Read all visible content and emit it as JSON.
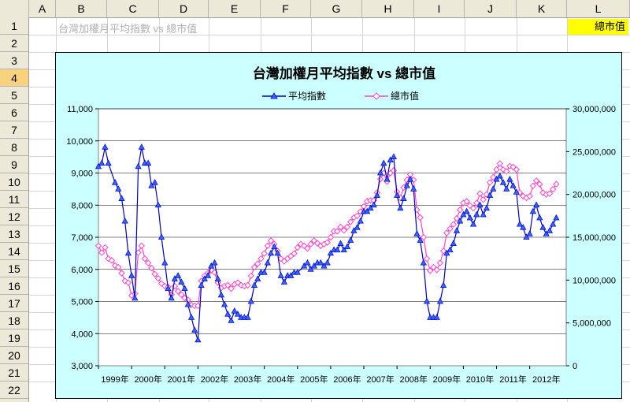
{
  "sheet": {
    "columns": [
      "A",
      "B",
      "C",
      "D",
      "E",
      "F",
      "G",
      "H",
      "I",
      "J",
      "K",
      "L"
    ],
    "rows": [
      "1",
      "2",
      "3",
      "4",
      "5",
      "6",
      "7",
      "8",
      "9",
      "10",
      "11",
      "12",
      "13",
      "14",
      "15",
      "16",
      "17",
      "18",
      "19",
      "20",
      "21",
      "22"
    ],
    "selected_row": "4",
    "cell_b1": "台灣加權月平均指數 vs 總市值",
    "cell_l1": "總市值"
  },
  "colors": {
    "index_series": "#0000cc",
    "index_marker": "#3366ff",
    "cap_series": "#ff44cc",
    "chart_bg": "#ccffff",
    "header_bg": "#ece9d8",
    "highlight": "#ffff00"
  },
  "chart_data": {
    "type": "line",
    "title": "台灣加權月平均指數 vs 總市值",
    "legend_position": "top",
    "grid": "horizontal",
    "x_tick_labels": [
      "1999年",
      "2000年",
      "2001年",
      "2002年",
      "2003年",
      "2004年",
      "2005年",
      "2006年",
      "2007年",
      "2008年",
      "2009年",
      "2010年",
      "2011年",
      "2012年"
    ],
    "x_range": [
      1999,
      2013.1
    ],
    "y_left": {
      "range": [
        3000,
        11000
      ],
      "ticks": [
        3000,
        4000,
        5000,
        6000,
        7000,
        8000,
        9000,
        10000,
        11000
      ],
      "tick_labels": [
        "3,000",
        "4,000",
        "5,000",
        "6,000",
        "7,000",
        "8,000",
        "9,000",
        "10,000",
        "11,000"
      ]
    },
    "y_right": {
      "range": [
        0,
        30000000
      ],
      "ticks": [
        0,
        5000000,
        10000000,
        15000000,
        20000000,
        25000000,
        30000000
      ],
      "tick_labels": [
        "0",
        "5,000,000",
        "10,000,000",
        "15,000,000",
        "20,000,000",
        "25,000,000",
        "30,000,000"
      ]
    },
    "series": [
      {
        "name": "平均指數",
        "axis": "left",
        "marker": "triangle",
        "points": [
          [
            1999.0,
            9200
          ],
          [
            1999.1,
            9300
          ],
          [
            1999.2,
            9800
          ],
          [
            1999.3,
            9300
          ],
          [
            1999.5,
            8700
          ],
          [
            1999.6,
            8500
          ],
          [
            1999.7,
            8200
          ],
          [
            1999.8,
            7500
          ],
          [
            1999.9,
            6500
          ],
          [
            2000.0,
            5800
          ],
          [
            2000.1,
            5100
          ],
          [
            2000.2,
            9200
          ],
          [
            2000.3,
            9800
          ],
          [
            2000.4,
            9300
          ],
          [
            2000.5,
            9300
          ],
          [
            2000.6,
            8600
          ],
          [
            2000.7,
            8700
          ],
          [
            2000.8,
            8000
          ],
          [
            2000.9,
            7000
          ],
          [
            2001.0,
            6200
          ],
          [
            2001.1,
            5400
          ],
          [
            2001.2,
            5100
          ],
          [
            2001.3,
            5700
          ],
          [
            2001.4,
            5800
          ],
          [
            2001.5,
            5600
          ],
          [
            2001.6,
            5400
          ],
          [
            2001.7,
            4900
          ],
          [
            2001.8,
            4500
          ],
          [
            2001.9,
            4100
          ],
          [
            2002.0,
            3800
          ],
          [
            2002.1,
            5500
          ],
          [
            2002.2,
            5700
          ],
          [
            2002.3,
            5800
          ],
          [
            2002.4,
            6100
          ],
          [
            2002.5,
            6200
          ],
          [
            2002.6,
            5700
          ],
          [
            2002.7,
            5200
          ],
          [
            2002.8,
            4900
          ],
          [
            2002.9,
            4600
          ],
          [
            2003.0,
            4400
          ],
          [
            2003.1,
            4700
          ],
          [
            2003.2,
            4600
          ],
          [
            2003.3,
            4500
          ],
          [
            2003.4,
            4500
          ],
          [
            2003.5,
            4500
          ],
          [
            2003.6,
            5000
          ],
          [
            2003.7,
            5500
          ],
          [
            2003.8,
            5700
          ],
          [
            2003.9,
            5900
          ],
          [
            2004.0,
            5900
          ],
          [
            2004.1,
            6200
          ],
          [
            2004.2,
            6500
          ],
          [
            2004.3,
            6700
          ],
          [
            2004.4,
            6500
          ],
          [
            2004.5,
            5800
          ],
          [
            2004.6,
            5600
          ],
          [
            2004.7,
            5800
          ],
          [
            2004.8,
            5800
          ],
          [
            2004.9,
            5900
          ],
          [
            2005.0,
            5900
          ],
          [
            2005.2,
            6100
          ],
          [
            2005.3,
            6200
          ],
          [
            2005.4,
            6000
          ],
          [
            2005.5,
            6100
          ],
          [
            2005.6,
            6200
          ],
          [
            2005.7,
            6200
          ],
          [
            2005.8,
            6100
          ],
          [
            2005.9,
            6200
          ],
          [
            2006.0,
            6500
          ],
          [
            2006.1,
            6600
          ],
          [
            2006.2,
            6600
          ],
          [
            2006.3,
            6800
          ],
          [
            2006.4,
            6600
          ],
          [
            2006.5,
            6700
          ],
          [
            2006.6,
            6900
          ],
          [
            2006.7,
            7200
          ],
          [
            2006.8,
            7300
          ],
          [
            2006.9,
            7500
          ],
          [
            2007.0,
            7800
          ],
          [
            2007.1,
            7800
          ],
          [
            2007.2,
            7900
          ],
          [
            2007.3,
            8000
          ],
          [
            2007.4,
            8300
          ],
          [
            2007.5,
            9000
          ],
          [
            2007.6,
            9300
          ],
          [
            2007.7,
            8800
          ],
          [
            2007.8,
            9400
          ],
          [
            2007.9,
            9500
          ],
          [
            2008.0,
            8300
          ],
          [
            2008.1,
            7900
          ],
          [
            2008.2,
            8200
          ],
          [
            2008.3,
            8600
          ],
          [
            2008.4,
            8800
          ],
          [
            2008.5,
            8500
          ],
          [
            2008.6,
            7100
          ],
          [
            2008.7,
            6900
          ],
          [
            2008.8,
            6200
          ],
          [
            2008.9,
            5000
          ],
          [
            2009.0,
            4500
          ],
          [
            2009.1,
            4500
          ],
          [
            2009.2,
            4500
          ],
          [
            2009.3,
            5000
          ],
          [
            2009.4,
            5500
          ],
          [
            2009.5,
            6500
          ],
          [
            2009.6,
            6600
          ],
          [
            2009.7,
            6800
          ],
          [
            2009.8,
            7200
          ],
          [
            2009.9,
            7500
          ],
          [
            2010.0,
            7700
          ],
          [
            2010.1,
            7800
          ],
          [
            2010.2,
            7600
          ],
          [
            2010.3,
            7400
          ],
          [
            2010.4,
            7700
          ],
          [
            2010.5,
            8000
          ],
          [
            2010.6,
            7700
          ],
          [
            2010.7,
            7900
          ],
          [
            2010.8,
            8300
          ],
          [
            2010.9,
            8500
          ],
          [
            2011.0,
            8800
          ],
          [
            2011.1,
            8900
          ],
          [
            2011.2,
            8700
          ],
          [
            2011.3,
            8500
          ],
          [
            2011.4,
            8800
          ],
          [
            2011.5,
            8600
          ],
          [
            2011.6,
            8400
          ],
          [
            2011.7,
            7400
          ],
          [
            2011.8,
            7300
          ],
          [
            2011.9,
            7000
          ],
          [
            2012.0,
            7100
          ],
          [
            2012.1,
            7800
          ],
          [
            2012.2,
            8000
          ],
          [
            2012.3,
            7600
          ],
          [
            2012.4,
            7300
          ],
          [
            2012.5,
            7100
          ],
          [
            2012.6,
            7200
          ],
          [
            2012.7,
            7400
          ],
          [
            2012.8,
            7600
          ]
        ]
      },
      {
        "name": "總市值",
        "axis": "right",
        "marker": "diamond",
        "points": [
          [
            1999.0,
            14000000
          ],
          [
            1999.1,
            13200000
          ],
          [
            1999.2,
            13800000
          ],
          [
            1999.3,
            12500000
          ],
          [
            1999.4,
            12300000
          ],
          [
            1999.5,
            11700000
          ],
          [
            1999.6,
            11500000
          ],
          [
            1999.7,
            10800000
          ],
          [
            1999.8,
            9900000
          ],
          [
            1999.9,
            9700000
          ],
          [
            2000.0,
            8200000
          ],
          [
            2000.1,
            8400000
          ],
          [
            2000.2,
            13200000
          ],
          [
            2000.3,
            14000000
          ],
          [
            2000.4,
            12500000
          ],
          [
            2000.5,
            12000000
          ],
          [
            2000.6,
            11400000
          ],
          [
            2000.7,
            10700000
          ],
          [
            2000.8,
            10200000
          ],
          [
            2000.9,
            9600000
          ],
          [
            2001.0,
            9300000
          ],
          [
            2001.1,
            9200000
          ],
          [
            2001.2,
            8300000
          ],
          [
            2001.3,
            9300000
          ],
          [
            2001.4,
            8700000
          ],
          [
            2001.5,
            8300000
          ],
          [
            2001.6,
            7900000
          ],
          [
            2001.7,
            7700000
          ],
          [
            2001.8,
            7100000
          ],
          [
            2001.9,
            7000000
          ],
          [
            2002.0,
            7000000
          ],
          [
            2002.1,
            9900000
          ],
          [
            2002.2,
            10500000
          ],
          [
            2002.3,
            10800000
          ],
          [
            2002.4,
            11200000
          ],
          [
            2002.5,
            10900000
          ],
          [
            2002.6,
            9700000
          ],
          [
            2002.7,
            9100000
          ],
          [
            2002.8,
            9300000
          ],
          [
            2002.9,
            9400000
          ],
          [
            2003.0,
            9000000
          ],
          [
            2003.1,
            9500000
          ],
          [
            2003.2,
            9700000
          ],
          [
            2003.3,
            9400000
          ],
          [
            2003.4,
            9300000
          ],
          [
            2003.5,
            9400000
          ],
          [
            2003.6,
            10500000
          ],
          [
            2003.7,
            11500000
          ],
          [
            2003.8,
            11900000
          ],
          [
            2003.9,
            12500000
          ],
          [
            2004.0,
            13100000
          ],
          [
            2004.1,
            14000000
          ],
          [
            2004.2,
            14600000
          ],
          [
            2004.3,
            14200000
          ],
          [
            2004.4,
            13400000
          ],
          [
            2004.5,
            12500000
          ],
          [
            2004.6,
            12200000
          ],
          [
            2004.7,
            12500000
          ],
          [
            2004.8,
            12800000
          ],
          [
            2004.9,
            13100000
          ],
          [
            2005.0,
            13800000
          ],
          [
            2005.1,
            14200000
          ],
          [
            2005.2,
            14000000
          ],
          [
            2005.3,
            13700000
          ],
          [
            2005.4,
            14200000
          ],
          [
            2005.5,
            14600000
          ],
          [
            2005.6,
            14300000
          ],
          [
            2005.7,
            14000000
          ],
          [
            2005.8,
            14200000
          ],
          [
            2005.9,
            14400000
          ],
          [
            2006.0,
            15000000
          ],
          [
            2006.1,
            15700000
          ],
          [
            2006.2,
            15700000
          ],
          [
            2006.3,
            16200000
          ],
          [
            2006.4,
            15800000
          ],
          [
            2006.5,
            16200000
          ],
          [
            2006.6,
            16800000
          ],
          [
            2006.7,
            17300000
          ],
          [
            2006.8,
            17500000
          ],
          [
            2006.9,
            18000000
          ],
          [
            2007.0,
            18600000
          ],
          [
            2007.1,
            19200000
          ],
          [
            2007.2,
            19300000
          ],
          [
            2007.3,
            19300000
          ],
          [
            2007.4,
            20200000
          ],
          [
            2007.5,
            21800000
          ],
          [
            2007.6,
            22500000
          ],
          [
            2007.7,
            21500000
          ],
          [
            2007.8,
            22500000
          ],
          [
            2007.9,
            22800000
          ],
          [
            2008.0,
            20300000
          ],
          [
            2008.1,
            19600000
          ],
          [
            2008.2,
            20800000
          ],
          [
            2008.3,
            21700000
          ],
          [
            2008.4,
            22300000
          ],
          [
            2008.5,
            21700000
          ],
          [
            2008.6,
            18200000
          ],
          [
            2008.7,
            17300000
          ],
          [
            2008.8,
            15000000
          ],
          [
            2008.9,
            12500000
          ],
          [
            2009.0,
            11100000
          ],
          [
            2009.1,
            11500000
          ],
          [
            2009.2,
            11200000
          ],
          [
            2009.3,
            12000000
          ],
          [
            2009.4,
            13400000
          ],
          [
            2009.5,
            15500000
          ],
          [
            2009.6,
            16000000
          ],
          [
            2009.7,
            16500000
          ],
          [
            2009.8,
            17200000
          ],
          [
            2009.9,
            18200000
          ],
          [
            2010.0,
            19000000
          ],
          [
            2010.1,
            19200000
          ],
          [
            2010.2,
            18700000
          ],
          [
            2010.3,
            18400000
          ],
          [
            2010.4,
            19000000
          ],
          [
            2010.5,
            20100000
          ],
          [
            2010.6,
            19400000
          ],
          [
            2010.7,
            20000000
          ],
          [
            2010.8,
            21400000
          ],
          [
            2010.9,
            22000000
          ],
          [
            2011.0,
            22900000
          ],
          [
            2011.1,
            23600000
          ],
          [
            2011.2,
            22900000
          ],
          [
            2011.3,
            22700000
          ],
          [
            2011.4,
            23300000
          ],
          [
            2011.5,
            23200000
          ],
          [
            2011.6,
            22900000
          ],
          [
            2011.7,
            20200000
          ],
          [
            2011.8,
            19800000
          ],
          [
            2011.9,
            19600000
          ],
          [
            2012.0,
            19800000
          ],
          [
            2012.1,
            21000000
          ],
          [
            2012.2,
            21600000
          ],
          [
            2012.3,
            21200000
          ],
          [
            2012.4,
            20200000
          ],
          [
            2012.5,
            20000000
          ],
          [
            2012.6,
            20100000
          ],
          [
            2012.7,
            20600000
          ],
          [
            2012.8,
            21200000
          ]
        ]
      }
    ]
  }
}
